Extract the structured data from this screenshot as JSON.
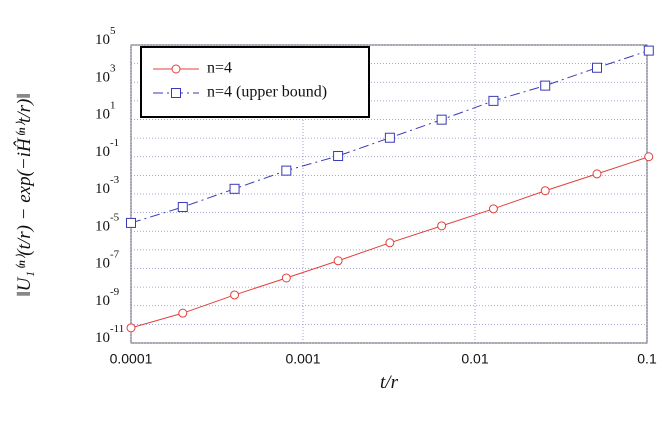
{
  "chart_data": {
    "type": "line",
    "x_label": "t/r",
    "y_label": "‖U₁⁽ⁿ⁾(t/r) − exp(−iĤ⁽ⁿ⁾t/r)‖",
    "x": [
      0.0001,
      0.0002,
      0.0004,
      0.0008,
      0.0016,
      0.0032,
      0.0064,
      0.0128,
      0.0256,
      0.0512,
      0.1024
    ],
    "series": [
      {
        "name": "n=4",
        "color": "#e0403c",
        "marker": "circle",
        "dash": "solid",
        "values": [
          6.5e-11,
          4e-10,
          3.8e-09,
          3.1e-08,
          2.6e-07,
          2.4e-06,
          1.95e-05,
          0.00016,
          0.0015,
          0.012,
          0.1
        ]
      },
      {
        "name": "n=4 (upper bound)",
        "color": "#3a3ab8",
        "marker": "square",
        "dash": "dashdot",
        "values": [
          2.8e-05,
          0.0002,
          0.0019,
          0.018,
          0.11,
          1.05,
          9.8,
          100,
          660,
          6000,
          50000
        ]
      }
    ],
    "x_log": true,
    "y_log": true,
    "xlim": [
      0.0001,
      0.1
    ],
    "ylim": [
      1e-11,
      100000
    ],
    "xticks": [
      0.0001,
      0.001,
      0.01,
      0.1
    ],
    "yticks": [
      {
        "value": 100000,
        "label": "10^5"
      },
      {
        "value": 1000,
        "label": "10^3"
      },
      {
        "value": 10,
        "label": "10^1"
      },
      {
        "value": 0.1,
        "label": "10^-1"
      },
      {
        "value": 0.001,
        "label": "10^-3"
      },
      {
        "value": 1e-05,
        "label": "10^-5"
      },
      {
        "value": 1e-07,
        "label": "10^-7"
      },
      {
        "value": 1e-09,
        "label": "10^-9"
      },
      {
        "value": 1e-11,
        "label": "10^-11"
      }
    ],
    "y_minor_grid": [
      10000,
      100,
      1,
      0.01,
      0.0001,
      1e-06,
      1e-08,
      1e-10
    ],
    "grid": true,
    "legend": "upper left"
  }
}
